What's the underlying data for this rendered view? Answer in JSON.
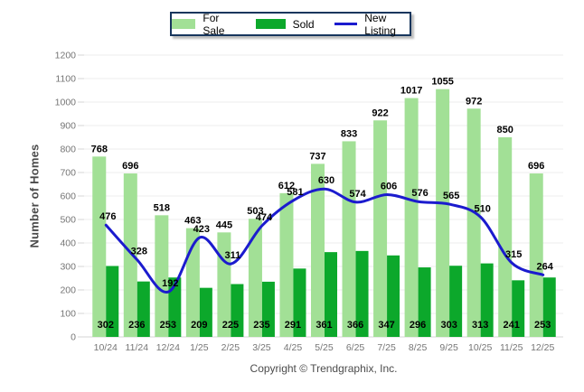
{
  "chart_data": {
    "type": "bar+line",
    "title": "",
    "categories": [
      "10/24",
      "11/24",
      "12/24",
      "1/25",
      "2/25",
      "3/25",
      "4/25",
      "5/25",
      "6/25",
      "7/25",
      "8/25",
      "9/25",
      "10/25",
      "11/25",
      "12/25"
    ],
    "series": [
      {
        "name": "For Sale",
        "type": "bar",
        "color": "#A2E096",
        "values": [
          768,
          696,
          518,
          463,
          445,
          503,
          612,
          737,
          833,
          922,
          1017,
          1055,
          972,
          850,
          696
        ]
      },
      {
        "name": "Sold",
        "type": "bar",
        "color": "#0CA82B",
        "values": [
          302,
          236,
          253,
          209,
          225,
          235,
          291,
          361,
          366,
          347,
          296,
          303,
          313,
          241,
          253
        ]
      },
      {
        "name": "New Listing",
        "type": "line",
        "color": "#1B1BCE",
        "values": [
          476,
          328,
          192,
          423,
          311,
          474,
          581,
          630,
          574,
          606,
          576,
          565,
          510,
          315,
          264
        ]
      }
    ],
    "xlabel": "",
    "ylabel": "Number of Homes",
    "ylim": [
      0,
      1200
    ],
    "ytick_step": 100,
    "yticks": [
      0,
      100,
      200,
      300,
      400,
      500,
      600,
      700,
      800,
      900,
      1000,
      1100,
      1200
    ],
    "grid": true,
    "legend_position": "top",
    "colors": {
      "grid": "#ECECEC",
      "axis": "#D4D4D4",
      "tick_label": "#757575",
      "value_label": "#000000",
      "axis_title": "#4a4a4a",
      "legend_border": "#17365D"
    }
  },
  "footer": {
    "copyright": "Copyright © Trendgraphix, Inc."
  }
}
